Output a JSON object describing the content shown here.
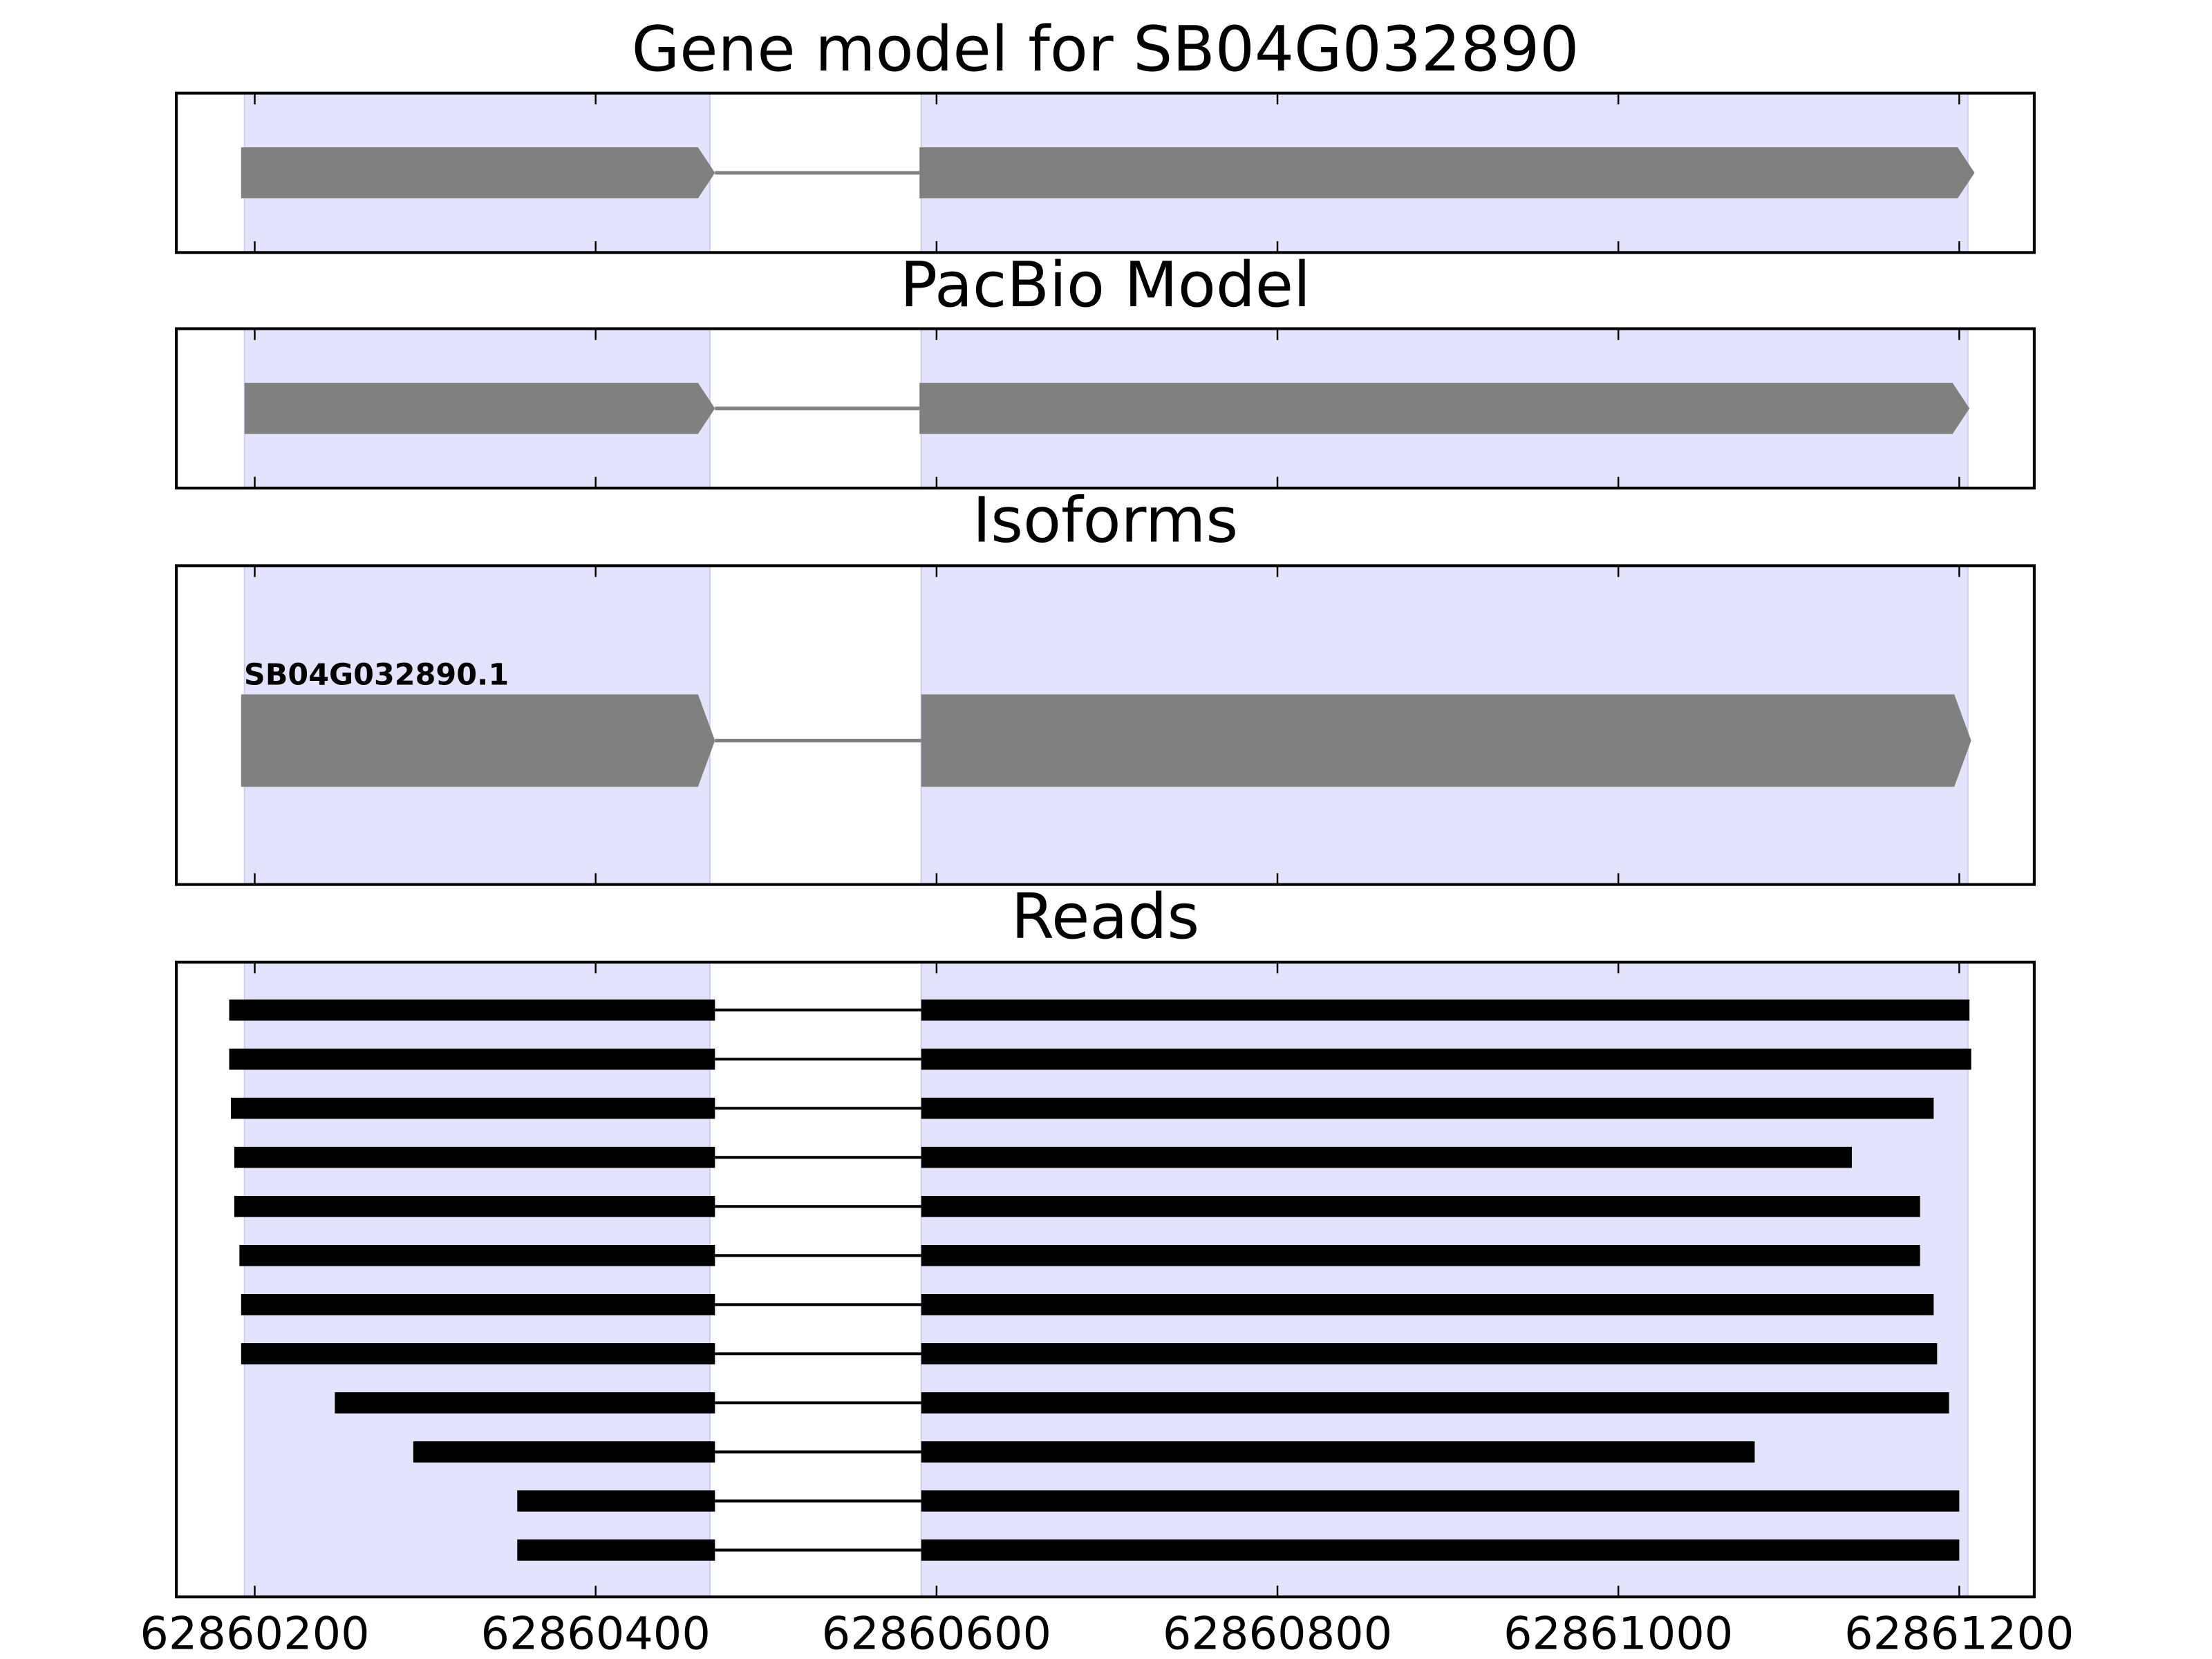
{
  "chart_data": [
    {
      "type": "gene",
      "title": "Gene model for SB04G032890",
      "xlim": [
        62860154,
        62861244
      ],
      "xticks": [
        62860200,
        62860400,
        62860600,
        62860800,
        62861000,
        62861200
      ],
      "shaded": [
        [
          62860194,
          62860467
        ],
        [
          62860591,
          62861205
        ]
      ],
      "shade_color": "#e3e3fc",
      "color": "#808080",
      "features": [
        {
          "blocks": [
            [
              62860192,
              62860470
            ],
            [
              62860590,
              62861209
            ]
          ]
        }
      ]
    },
    {
      "type": "gene",
      "title": "PacBio Model",
      "xlim": [
        62860154,
        62861244
      ],
      "xticks": [
        62860200,
        62860400,
        62860600,
        62860800,
        62861000,
        62861200
      ],
      "shaded": [
        [
          62860194,
          62860467
        ],
        [
          62860591,
          62861205
        ]
      ],
      "shade_color": "#e3e3fc",
      "color": "#808080",
      "features": [
        {
          "blocks": [
            [
              62860194,
              62860470
            ],
            [
              62860590,
              62861206
            ]
          ]
        }
      ]
    },
    {
      "type": "gene",
      "title": "Isoforms",
      "xlim": [
        62860154,
        62861244
      ],
      "xticks": [
        62860200,
        62860400,
        62860600,
        62860800,
        62861000,
        62861200
      ],
      "shaded": [
        [
          62860194,
          62860467
        ],
        [
          62860591,
          62861205
        ]
      ],
      "shade_color": "#e3e3fc",
      "color": "#808080",
      "features": [
        {
          "name": "SB04G032890.1",
          "blocks": [
            [
              62860192,
              62860470
            ],
            [
              62860591,
              62861207
            ]
          ]
        }
      ]
    },
    {
      "type": "reads",
      "title": "Reads",
      "xlim": [
        62860154,
        62861244
      ],
      "xticks": [
        62860200,
        62860400,
        62860600,
        62860800,
        62861000,
        62861200
      ],
      "shaded": [
        [
          62860194,
          62860467
        ],
        [
          62860591,
          62861205
        ]
      ],
      "shade_color": "#e3e3fc",
      "color": "#000000",
      "features": [
        {
          "blocks": [
            [
              62860185,
              62860470
            ],
            [
              62860591,
              62861206
            ]
          ]
        },
        {
          "blocks": [
            [
              62860185,
              62860470
            ],
            [
              62860591,
              62861207
            ]
          ]
        },
        {
          "blocks": [
            [
              62860186,
              62860470
            ],
            [
              62860591,
              62861185
            ]
          ]
        },
        {
          "blocks": [
            [
              62860188,
              62860470
            ],
            [
              62860591,
              62861137
            ]
          ]
        },
        {
          "blocks": [
            [
              62860188,
              62860470
            ],
            [
              62860591,
              62861177
            ]
          ]
        },
        {
          "blocks": [
            [
              62860191,
              62860470
            ],
            [
              62860591,
              62861177
            ]
          ]
        },
        {
          "blocks": [
            [
              62860192,
              62860470
            ],
            [
              62860591,
              62861185
            ]
          ]
        },
        {
          "blocks": [
            [
              62860192,
              62860470
            ],
            [
              62860591,
              62861187
            ]
          ]
        },
        {
          "blocks": [
            [
              62860247,
              62860470
            ],
            [
              62860591,
              62861194
            ]
          ]
        },
        {
          "blocks": [
            [
              62860293,
              62860470
            ],
            [
              62860591,
              62861080
            ]
          ]
        },
        {
          "blocks": [
            [
              62860354,
              62860470
            ],
            [
              62860591,
              62861200
            ]
          ]
        },
        {
          "blocks": [
            [
              62860354,
              62860470
            ],
            [
              62860591,
              62861200
            ]
          ]
        }
      ]
    }
  ]
}
